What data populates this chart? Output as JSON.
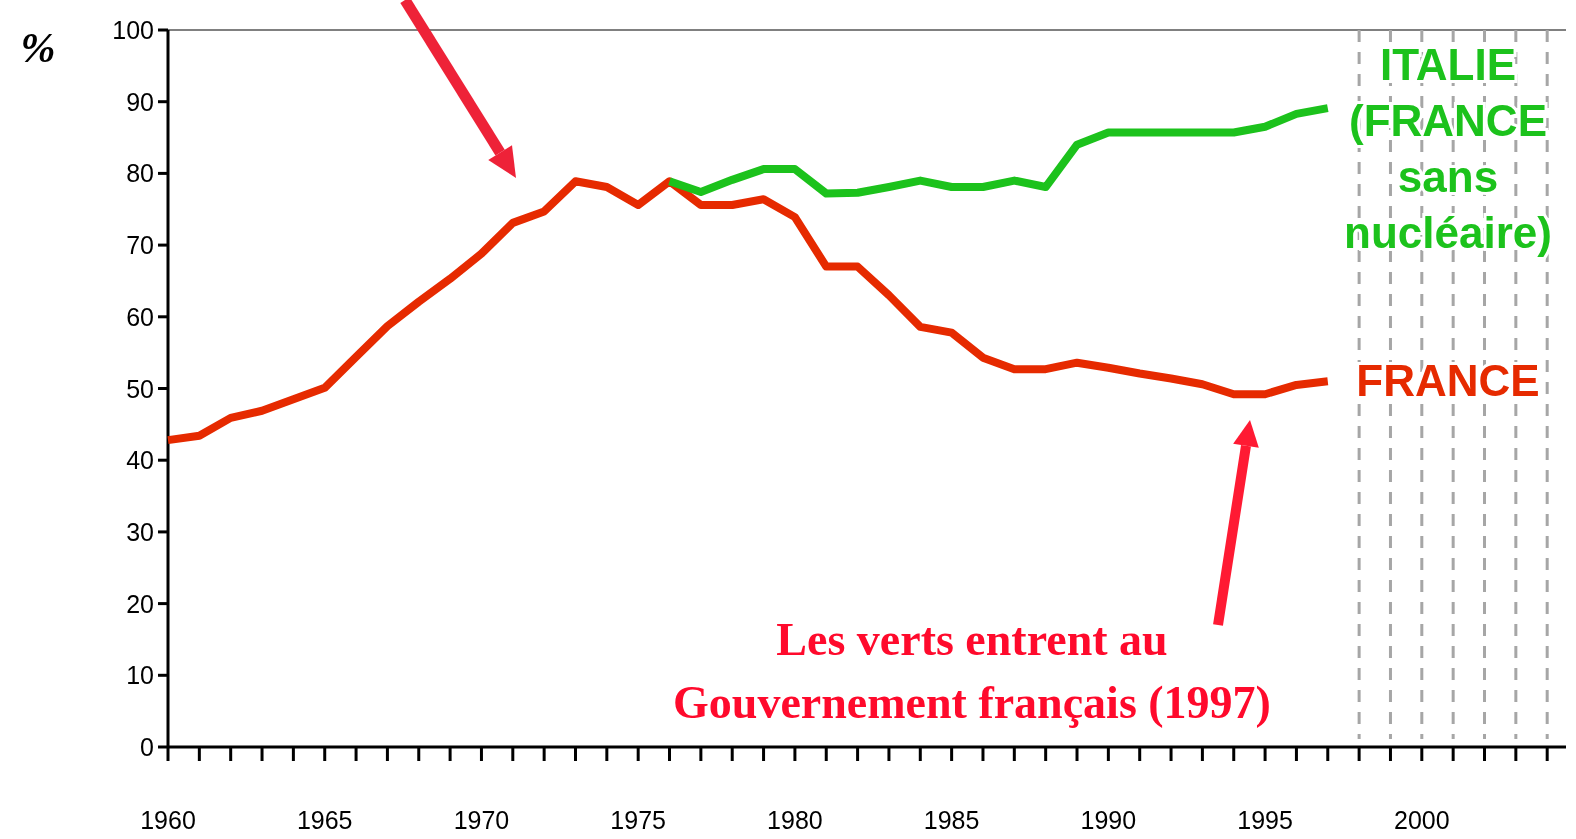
{
  "chart_data": {
    "type": "line",
    "ylabel": "%",
    "xlim": [
      1960,
      2004.6
    ],
    "ylim": [
      0,
      100
    ],
    "xticks": [
      1960,
      {
        "value": 1961,
        "label": null
      },
      {
        "value": 1962,
        "label": null
      },
      {
        "value": 1963,
        "label": null
      },
      {
        "value": 1964,
        "label": null
      },
      1965,
      {
        "value": 1966,
        "label": null
      },
      {
        "value": 1967,
        "label": null
      },
      {
        "value": 1968,
        "label": null
      },
      {
        "value": 1969,
        "label": null
      },
      1970,
      {
        "value": 1971,
        "label": null
      },
      {
        "value": 1972,
        "label": null
      },
      {
        "value": 1973,
        "label": null
      },
      {
        "value": 1974,
        "label": null
      },
      1975,
      {
        "value": 1976,
        "label": null
      },
      {
        "value": 1977,
        "label": null
      },
      {
        "value": 1978,
        "label": null
      },
      {
        "value": 1979,
        "label": null
      },
      1980,
      {
        "value": 1981,
        "label": null
      },
      {
        "value": 1982,
        "label": null
      },
      {
        "value": 1983,
        "label": null
      },
      {
        "value": 1984,
        "label": null
      },
      1985,
      {
        "value": 1986,
        "label": null
      },
      {
        "value": 1987,
        "label": null
      },
      {
        "value": 1988,
        "label": null
      },
      {
        "value": 1989,
        "label": null
      },
      1990,
      {
        "value": 1991,
        "label": null
      },
      {
        "value": 1992,
        "label": null
      },
      {
        "value": 1993,
        "label": null
      },
      {
        "value": 1994,
        "label": null
      },
      1995,
      {
        "value": 1996,
        "label": null
      },
      {
        "value": 1997,
        "label": null
      },
      {
        "value": 1998,
        "label": null
      },
      {
        "value": 1999,
        "label": null
      },
      2000,
      {
        "value": 2001,
        "label": null
      },
      {
        "value": 2002,
        "label": null
      },
      {
        "value": 2003,
        "label": null
      },
      {
        "value": 2004,
        "label": null
      }
    ],
    "yticks": [
      0,
      10,
      20,
      30,
      40,
      50,
      60,
      70,
      80,
      90,
      100
    ],
    "grid": false,
    "marker": "none",
    "line_style": "solid",
    "series": [
      {
        "name": "FRANCE",
        "color": "#e62a00",
        "x": [
          1960,
          1961,
          1962,
          1963,
          1964,
          1965,
          1966,
          1967,
          1968,
          1969,
          1970,
          1971,
          1972,
          1973,
          1974,
          1975,
          1976,
          1977,
          1978,
          1979,
          1980,
          1981,
          1982,
          1983,
          1984,
          1985,
          1986,
          1987,
          1988,
          1989,
          1990,
          1991,
          1992,
          1993,
          1994,
          1995,
          1996,
          1997
        ],
        "values": [
          42.8,
          43.4,
          45.9,
          46.9,
          48.5,
          50.1,
          54.4,
          58.7,
          62.1,
          65.3,
          68.8,
          73.1,
          74.7,
          78.9,
          78.1,
          75.6,
          78.9,
          75.6,
          75.6,
          76.4,
          73.9,
          67.0,
          67.0,
          63.0,
          58.6,
          57.8,
          54.3,
          52.7,
          52.7,
          53.6,
          52.9,
          52.1,
          51.4,
          50.6,
          49.2,
          49.2,
          50.5,
          51.0
        ]
      },
      {
        "name": "ITALIE (FRANCE sans nucléaire)",
        "color": "#1cc21c",
        "x": [
          1976,
          1977,
          1978,
          1979,
          1980,
          1981,
          1982,
          1983,
          1984,
          1985,
          1986,
          1987,
          1988,
          1989,
          1990,
          1991,
          1992,
          1993,
          1994,
          1995,
          1996,
          1997
        ],
        "values": [
          78.9,
          77.4,
          79.1,
          80.6,
          80.6,
          77.2,
          77.3,
          78.1,
          79.0,
          78.1,
          78.1,
          79.0,
          78.1,
          84.0,
          85.7,
          85.7,
          85.7,
          85.7,
          85.7,
          86.5,
          88.3,
          89.1
        ]
      }
    ],
    "ref_lines": [
      {
        "axis": "y",
        "value": 100,
        "color": "#808080",
        "line_style": "solid"
      },
      {
        "axis": "x",
        "value": 1998,
        "color": "#a6a6a6",
        "line_style": "dashed"
      },
      {
        "axis": "x",
        "value": 1999,
        "color": "#a6a6a6",
        "line_style": "dashed"
      },
      {
        "axis": "x",
        "value": 2000,
        "color": "#a6a6a6",
        "line_style": "dashed"
      },
      {
        "axis": "x",
        "value": 2001,
        "color": "#a6a6a6",
        "line_style": "dashed"
      },
      {
        "axis": "x",
        "value": 2002,
        "color": "#a6a6a6",
        "line_style": "dashed"
      },
      {
        "axis": "x",
        "value": 2003,
        "color": "#a6a6a6",
        "line_style": "dashed"
      },
      {
        "axis": "x",
        "value": 2004,
        "color": "#a6a6a6",
        "line_style": "dashed"
      }
    ],
    "annotations": [
      "Les verts entrent au\nGouvernement français (1997)"
    ]
  }
}
